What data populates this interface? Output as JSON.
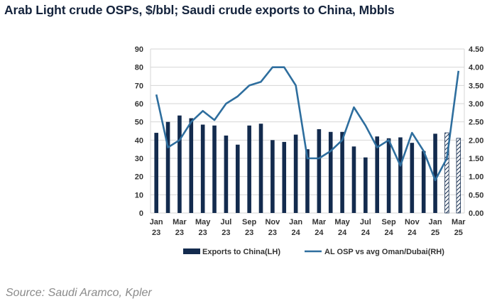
{
  "title": "Arab Light crude OSPs, $/bbl; Saudi crude exports to China, Mbbls",
  "source": "Source: Saudi Aramco, Kpler",
  "colors": {
    "bar": "#132b4e",
    "line": "#2e6e9e",
    "grid": "#d6d6d6",
    "axis_text": "#333333",
    "title": "#14233c",
    "source": "#8a8a8a"
  },
  "chart_data": {
    "type": "bar",
    "title": "Arab Light crude OSPs, $/bbl; Saudi crude exports to China, Mbbls",
    "categories": [
      "Jan 23",
      "Feb 23",
      "Mar 23",
      "Apr 23",
      "May 23",
      "Jun 23",
      "Jul 23",
      "Aug 23",
      "Sep 23",
      "Oct 23",
      "Nov 23",
      "Dec 23",
      "Jan 24",
      "Feb 24",
      "Mar 24",
      "Apr 24",
      "May 24",
      "Jun 24",
      "Jul 24",
      "Aug 24",
      "Sep 24",
      "Oct 24",
      "Nov 24",
      "Dec 24",
      "Jan 25",
      "Feb 25",
      "Mar 25"
    ],
    "x_tick_labels": [
      {
        "month": "Jan",
        "year": "23"
      },
      {
        "month": "Mar",
        "year": "23"
      },
      {
        "month": "May",
        "year": "23"
      },
      {
        "month": "Jul",
        "year": "23"
      },
      {
        "month": "Sep",
        "year": "23"
      },
      {
        "month": "Nov",
        "year": "23"
      },
      {
        "month": "Jan",
        "year": "24"
      },
      {
        "month": "Mar",
        "year": "24"
      },
      {
        "month": "May",
        "year": "24"
      },
      {
        "month": "Jul",
        "year": "24"
      },
      {
        "month": "Sep",
        "year": "24"
      },
      {
        "month": "Nov",
        "year": "24"
      },
      {
        "month": "Jan",
        "year": "25"
      },
      {
        "month": "Mar",
        "year": "25"
      }
    ],
    "series": [
      {
        "name": "Exports to China(LH)",
        "type": "bar",
        "axis": "left",
        "values": [
          44,
          50,
          53.5,
          52,
          48.5,
          48,
          42.5,
          37.5,
          48,
          49,
          40,
          39,
          43,
          35,
          46,
          44.5,
          44.5,
          36.5,
          30.5,
          42,
          41,
          41.5,
          38.5,
          34,
          43.5,
          44,
          41
        ],
        "hatched_from_index": 25
      },
      {
        "name": "AL OSP vs avg Oman/Dubai(RH)",
        "type": "line",
        "axis": "right",
        "values": [
          3.25,
          1.8,
          2.0,
          2.5,
          2.8,
          2.55,
          3.0,
          3.2,
          3.5,
          3.6,
          4.0,
          4.0,
          3.5,
          1.5,
          1.5,
          1.7,
          2.0,
          2.9,
          2.4,
          1.8,
          2.0,
          1.3,
          2.2,
          1.7,
          0.9,
          1.5,
          3.9
        ]
      }
    ],
    "y_left": {
      "min": 0,
      "max": 90,
      "step": 10,
      "tick_labels": [
        "0",
        "10",
        "20",
        "30",
        "40",
        "50",
        "60",
        "70",
        "80",
        "90"
      ]
    },
    "y_right": {
      "min": 0,
      "max": 4.5,
      "step": 0.5,
      "tick_labels": [
        "0.00",
        "0.50",
        "1.00",
        "1.50",
        "2.00",
        "2.50",
        "3.00",
        "3.50",
        "4.00",
        "4.50"
      ]
    },
    "legend": {
      "placement": "bottom",
      "items": [
        "Exports to China(LH)",
        "AL OSP vs avg Oman/Dubai(RH)"
      ]
    },
    "grid": true
  }
}
